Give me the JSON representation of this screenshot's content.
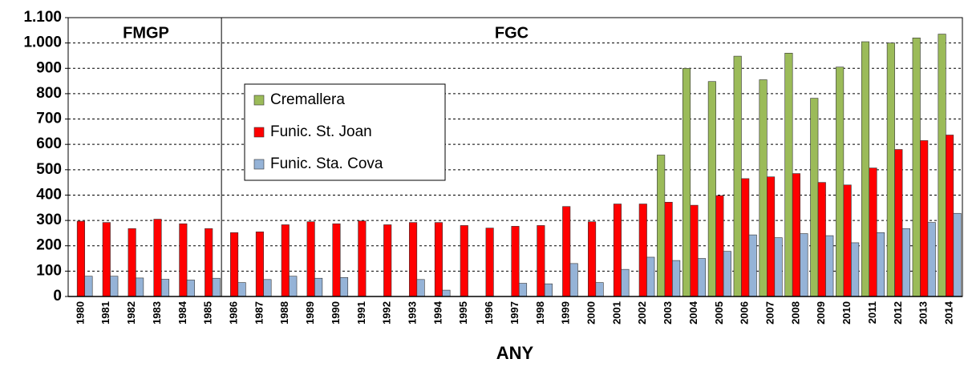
{
  "chart_data": {
    "type": "bar",
    "x_label": "ANY",
    "annotations": [
      "FMGP",
      "FGC"
    ],
    "categories": [
      "1980",
      "1981",
      "1982",
      "1983",
      "1984",
      "1985",
      "1986",
      "1987",
      "1988",
      "1989",
      "1990",
      "1991",
      "1992",
      "1993",
      "1994",
      "1995",
      "1996",
      "1997",
      "1998",
      "1999",
      "2000",
      "2001",
      "2002",
      "2003",
      "2004",
      "2005",
      "2006",
      "2007",
      "2008",
      "2009",
      "2010",
      "2011",
      "2012",
      "2013",
      "2014"
    ],
    "series": [
      {
        "name": "Cremallera",
        "color": "#9bbb59",
        "values": [
          null,
          null,
          null,
          null,
          null,
          null,
          null,
          null,
          null,
          null,
          null,
          null,
          null,
          null,
          null,
          null,
          null,
          null,
          null,
          null,
          null,
          null,
          null,
          558,
          900,
          848,
          948,
          855,
          960,
          782,
          905,
          1005,
          1000,
          1020,
          1035
        ]
      },
      {
        "name": "Funic. St. Joan",
        "color": "#ff0000",
        "values": [
          297,
          292,
          268,
          305,
          287,
          268,
          252,
          255,
          283,
          295,
          287,
          298,
          283,
          292,
          292,
          280,
          270,
          277,
          280,
          355,
          295,
          365,
          365,
          372,
          360,
          398,
          465,
          472,
          485,
          450,
          440,
          507,
          580,
          615,
          637
        ]
      },
      {
        "name": "Funic. Sta. Cova",
        "color": "#95b3d7",
        "values": [
          80,
          80,
          73,
          68,
          65,
          72,
          55,
          67,
          80,
          72,
          75,
          null,
          null,
          67,
          25,
          null,
          null,
          52,
          50,
          130,
          55,
          107,
          155,
          142,
          150,
          178,
          243,
          232,
          248,
          240,
          212,
          252,
          268,
          292,
          328
        ]
      }
    ],
    "ylim": [
      0,
      1100
    ],
    "yticks": [
      0,
      100,
      200,
      300,
      400,
      500,
      600,
      700,
      800,
      900,
      {
        "value": 1000,
        "label": "1.000"
      },
      {
        "value": 1100,
        "label": "1.100"
      }
    ],
    "grid": true,
    "legend": "upper left"
  }
}
